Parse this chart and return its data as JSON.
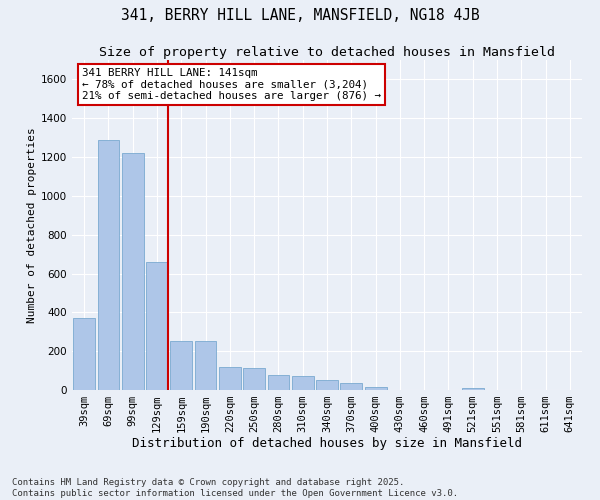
{
  "title": "341, BERRY HILL LANE, MANSFIELD, NG18 4JB",
  "subtitle": "Size of property relative to detached houses in Mansfield",
  "xlabel": "Distribution of detached houses by size in Mansfield",
  "ylabel": "Number of detached properties",
  "categories": [
    "39sqm",
    "69sqm",
    "99sqm",
    "129sqm",
    "159sqm",
    "190sqm",
    "220sqm",
    "250sqm",
    "280sqm",
    "310sqm",
    "340sqm",
    "370sqm",
    "400sqm",
    "430sqm",
    "460sqm",
    "491sqm",
    "521sqm",
    "551sqm",
    "581sqm",
    "611sqm",
    "641sqm"
  ],
  "values": [
    370,
    1290,
    1220,
    660,
    255,
    250,
    120,
    115,
    75,
    70,
    50,
    35,
    15,
    0,
    0,
    0,
    10,
    0,
    0,
    0,
    0
  ],
  "bar_color": "#aec6e8",
  "bar_edge_color": "#7aaad0",
  "red_line_x": 3,
  "annotation_text": "341 BERRY HILL LANE: 141sqm\n← 78% of detached houses are smaller (3,204)\n21% of semi-detached houses are larger (876) →",
  "annotation_box_color": "#ffffff",
  "annotation_box_edge": "#cc0000",
  "ylim": [
    0,
    1700
  ],
  "yticks": [
    0,
    200,
    400,
    600,
    800,
    1000,
    1200,
    1400,
    1600
  ],
  "background_color": "#eaeff7",
  "grid_color": "#ffffff",
  "footer_text": "Contains HM Land Registry data © Crown copyright and database right 2025.\nContains public sector information licensed under the Open Government Licence v3.0.",
  "title_fontsize": 10.5,
  "subtitle_fontsize": 9.5,
  "xlabel_fontsize": 9,
  "ylabel_fontsize": 8,
  "tick_fontsize": 7.5,
  "annotation_fontsize": 7.8,
  "footer_fontsize": 6.5
}
